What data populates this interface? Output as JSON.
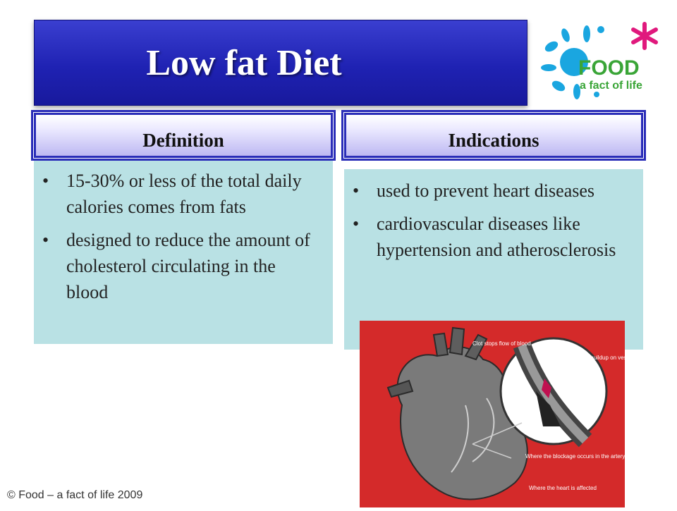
{
  "slide": {
    "title": "Low fat Diet"
  },
  "logo": {
    "word": "FOOD",
    "tagline": "a fact of life"
  },
  "definition": {
    "header": "Definition",
    "bullets": [
      "15-30% or less of the total daily calories comes from fats",
      "designed to reduce the amount of cholesterol circulating in the blood"
    ]
  },
  "indications": {
    "header": "Indications",
    "bullets": [
      "used to prevent heart diseases",
      "cardiovascular diseases like hypertension and atherosclerosis"
    ]
  },
  "illustration": {
    "label_clot": "Clot stops flow of blood",
    "label_plaque": "Plaque buildup on vessel walls",
    "label_blockage": "Where the blockage occurs in the artery",
    "label_heart": "Where the heart is affected"
  },
  "footer": {
    "copyright": "© Food – a fact of life 2009"
  },
  "colors": {
    "title_bg": "#1f22b3",
    "content_bg": "#b9e1e4",
    "illustration_bg": "#d42a2a",
    "logo_blue": "#1aa6e0",
    "logo_green": "#3aa537",
    "logo_magenta": "#e0197d"
  }
}
